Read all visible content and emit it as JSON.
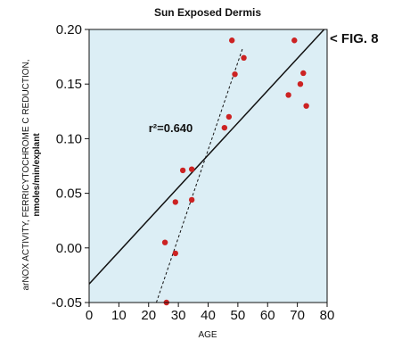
{
  "chart_data": {
    "type": "scatter",
    "title": "Sun Exposed Dermis",
    "xlabel": "AGE",
    "ylabel_line1": "arNOX ACTIVITY, FERRICYTOCHROME C REDUCTION,",
    "ylabel_line2": "nmoles/min/explant",
    "xlim": [
      0,
      80
    ],
    "ylim": [
      -0.05,
      0.2
    ],
    "xticks": [
      0,
      10,
      20,
      30,
      40,
      50,
      60,
      70,
      80
    ],
    "yticks": [
      -0.05,
      0.0,
      0.05,
      0.1,
      0.15,
      0.2
    ],
    "ytick_labels": [
      "-0.05",
      "0.00",
      "0.05",
      "0.10",
      "0.15",
      "0.20"
    ],
    "points": [
      {
        "x": 26,
        "y": -0.05
      },
      {
        "x": 25.5,
        "y": 0.005
      },
      {
        "x": 29,
        "y": -0.005
      },
      {
        "x": 29,
        "y": 0.042
      },
      {
        "x": 31.5,
        "y": 0.071
      },
      {
        "x": 34.5,
        "y": 0.072
      },
      {
        "x": 34.5,
        "y": 0.044
      },
      {
        "x": 45.5,
        "y": 0.11
      },
      {
        "x": 47,
        "y": 0.12
      },
      {
        "x": 48,
        "y": 0.19
      },
      {
        "x": 49,
        "y": 0.159
      },
      {
        "x": 52,
        "y": 0.174
      },
      {
        "x": 67,
        "y": 0.14
      },
      {
        "x": 69,
        "y": 0.19
      },
      {
        "x": 71,
        "y": 0.15
      },
      {
        "x": 72,
        "y": 0.16
      },
      {
        "x": 73,
        "y": 0.13
      }
    ],
    "regression_line": {
      "x": [
        0,
        80
      ],
      "y": [
        -0.033,
        0.203
      ],
      "style": "solid"
    },
    "steep_fit_line": {
      "x": [
        22.6,
        51.5
      ],
      "y": [
        -0.05,
        0.182
      ],
      "style": "dashed"
    },
    "annotation": "r²=0.640",
    "annotation_pos": {
      "x": 20,
      "y": 0.11
    },
    "grid": false,
    "plot_background": "#dceef5",
    "point_color": "#cc2222"
  },
  "figure_label": "< FIG. 8"
}
